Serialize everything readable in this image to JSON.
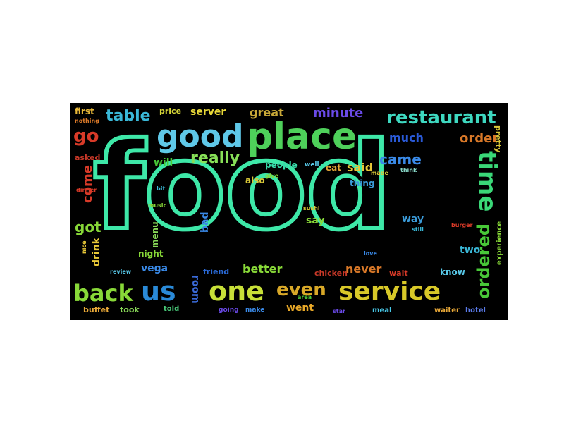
{
  "cloud": {
    "background": "#000000",
    "words": [
      {
        "text": "food",
        "color": "#3ee8a8"
      },
      {
        "text": "good",
        "color": "#5fc8e8"
      },
      {
        "text": "place",
        "color": "#4ed05a"
      },
      {
        "text": "restaurant",
        "color": "#3ed8c0"
      },
      {
        "text": "service",
        "color": "#d8c828"
      },
      {
        "text": "one",
        "color": "#c8e038"
      },
      {
        "text": "back",
        "color": "#88d838"
      },
      {
        "text": "us",
        "color": "#2a8ad8"
      },
      {
        "text": "time",
        "color": "#3ad878"
      },
      {
        "text": "ordered",
        "color": "#48c838"
      },
      {
        "text": "even",
        "color": "#d8a828"
      },
      {
        "text": "table",
        "color": "#3ab8d8"
      },
      {
        "text": "go",
        "color": "#d83a28"
      },
      {
        "text": "really",
        "color": "#88e058"
      },
      {
        "text": "came",
        "color": "#3a8ae8"
      },
      {
        "text": "order",
        "color": "#d87828"
      },
      {
        "text": "much",
        "color": "#2a5ad8"
      },
      {
        "text": "minute",
        "color": "#6a4ae8"
      },
      {
        "text": "great",
        "color": "#c8a838"
      },
      {
        "text": "server",
        "color": "#e8d838"
      },
      {
        "text": "price",
        "color": "#d8d838"
      },
      {
        "text": "first",
        "color": "#e8b838"
      },
      {
        "text": "got",
        "color": "#88d838"
      },
      {
        "text": "come",
        "color": "#d83a28"
      },
      {
        "text": "asked",
        "color": "#c83828"
      },
      {
        "text": "will",
        "color": "#48c838"
      },
      {
        "text": "people",
        "color": "#38d8a8"
      },
      {
        "text": "said",
        "color": "#e8c838"
      },
      {
        "text": "thing",
        "color": "#3a9ad8"
      },
      {
        "text": "also",
        "color": "#d8c838"
      },
      {
        "text": "eat",
        "color": "#e8a838"
      },
      {
        "text": "went",
        "color": "#e8a828"
      },
      {
        "text": "better",
        "color": "#88d838"
      },
      {
        "text": "never",
        "color": "#d87828"
      },
      {
        "text": "vega",
        "color": "#3a8ae8"
      },
      {
        "text": "room",
        "color": "#3a6ad8"
      },
      {
        "text": "drink",
        "color": "#e8c838"
      },
      {
        "text": "night",
        "color": "#88d838"
      },
      {
        "text": "menu",
        "color": "#88d858"
      },
      {
        "text": "bad",
        "color": "#3a8ae8"
      },
      {
        "text": "say",
        "color": "#88d838"
      },
      {
        "text": "way",
        "color": "#3a9ad8"
      },
      {
        "text": "two",
        "color": "#3ab8d8"
      },
      {
        "text": "know",
        "color": "#58c8e8"
      },
      {
        "text": "friend",
        "color": "#2a6ad8"
      },
      {
        "text": "chicken",
        "color": "#c83828"
      },
      {
        "text": "wait",
        "color": "#d83a28"
      },
      {
        "text": "buffet",
        "color": "#e8a838"
      },
      {
        "text": "took",
        "color": "#88d858"
      },
      {
        "text": "told",
        "color": "#48c878"
      },
      {
        "text": "going",
        "color": "#6a4ae8"
      },
      {
        "text": "make",
        "color": "#3a8ae8"
      },
      {
        "text": "meal",
        "color": "#48c8e8"
      },
      {
        "text": "waiter",
        "color": "#e8a838"
      },
      {
        "text": "hotel",
        "color": "#5a7ae8"
      },
      {
        "text": "pretty",
        "color": "#d8c838"
      },
      {
        "text": "experience",
        "color": "#88d838"
      },
      {
        "text": "dinner",
        "color": "#d83a28"
      },
      {
        "text": "nice",
        "color": "#e8c838"
      },
      {
        "text": "review",
        "color": "#58c8e8"
      },
      {
        "text": "think",
        "color": "#88d8c8"
      },
      {
        "text": "nothing",
        "color": "#d87828"
      },
      {
        "text": "love",
        "color": "#3a8ae8"
      },
      {
        "text": "give",
        "color": "#88d838"
      },
      {
        "text": "still",
        "color": "#3ab8d8"
      },
      {
        "text": "star",
        "color": "#6a4ae8"
      },
      {
        "text": "well",
        "color": "#58c8e8"
      },
      {
        "text": "music",
        "color": "#88d838"
      },
      {
        "text": "made",
        "color": "#d8c838"
      },
      {
        "text": "burger",
        "color": "#d83a28"
      },
      {
        "text": "bit",
        "color": "#3ab8d8"
      },
      {
        "text": "area",
        "color": "#48c838"
      },
      {
        "text": "sushi",
        "color": "#d8c838"
      }
    ]
  }
}
